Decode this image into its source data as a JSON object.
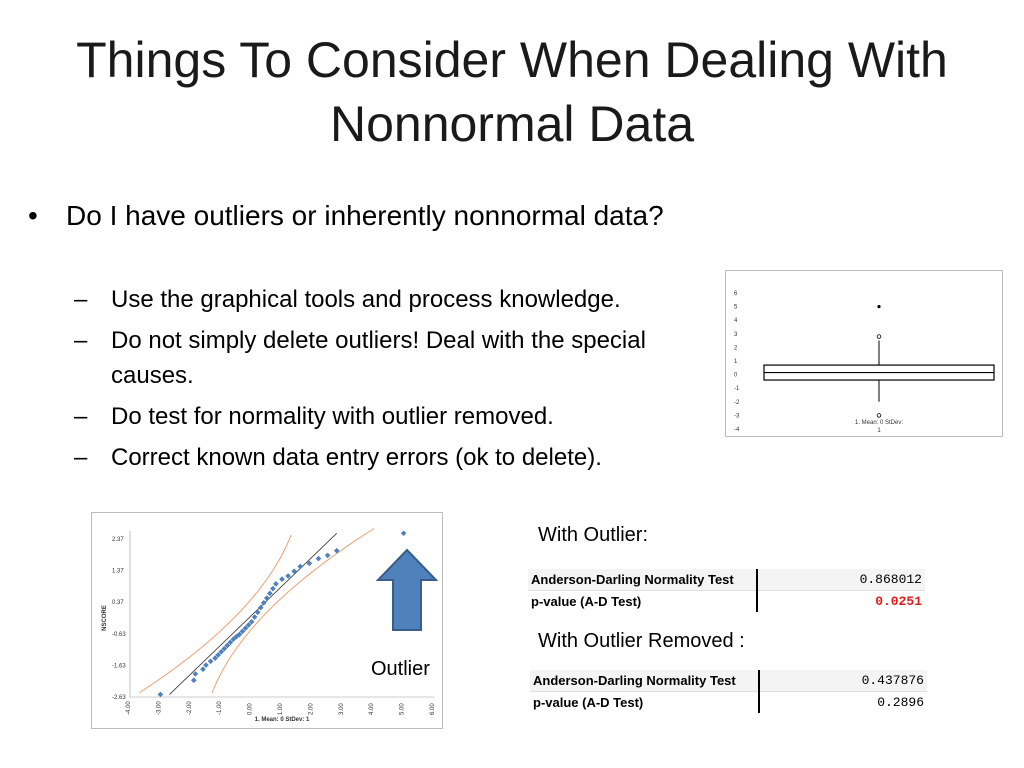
{
  "slide": {
    "title_line1": "Things To Consider When Dealing With",
    "title_line2": "Nonnormal Data",
    "bullet_symbol": "•",
    "dash_symbol": "–",
    "main_bullet": "Do I have outliers or inherently nonnormal data?",
    "sub_bullets": [
      "Use the graphical tools and process knowledge.",
      "Do not simply delete outliers! Deal with the special causes.",
      "Do test for normality with outlier removed.",
      "Correct known data entry errors (ok to delete)."
    ],
    "outlier_label": "Outlier",
    "with_outlier_label": "With Outlier:",
    "removed_label": "With Outlier Removed :"
  },
  "tables": {
    "with_outlier": {
      "row1_label": "Anderson-Darling Normality Test",
      "row1_value": "0.868012",
      "row2_label": "p-value (A-D Test)",
      "row2_value": "0.0251"
    },
    "outlier_removed": {
      "row1_label": "Anderson-Darling Normality Test",
      "row1_value": "0.437876",
      "row2_label": "p-value (A-D Test)",
      "row2_value": "0.2896"
    },
    "highlight_color": "#e31a1a"
  },
  "chart_data": [
    {
      "type": "box",
      "y_ticks": [
        "6",
        "5",
        "4",
        "3",
        "2",
        "1",
        "0",
        "-1",
        "-2",
        "-3",
        "-4"
      ],
      "ylim": [
        -4,
        6
      ],
      "box": {
        "q1": -0.4,
        "q3": 0.7,
        "median": 0.15,
        "whisker_low": -2,
        "whisker_high": 2.5
      },
      "outliers_circle": [
        2.8,
        -3
      ],
      "outlier_dot": 5,
      "xlabel": "1. Mean: 0 StDev:",
      "xlabel2": "1"
    },
    {
      "type": "scatter",
      "ylabel": "NSCORE",
      "xlabel": "1. Mean: 0 StDev: 1",
      "y_ticks": [
        "2.37",
        "1.37",
        "0.37",
        "-0.63",
        "-1.63",
        "-2.63"
      ],
      "x_ticks": [
        "-4.00",
        "-3.00",
        "-2.00",
        "-1.00",
        "0.00",
        "1.00",
        "2.00",
        "3.00",
        "4.00",
        "5.00",
        "6.00"
      ],
      "xlim": [
        -4,
        6
      ],
      "ylim": [
        -2.63,
        2.37
      ],
      "points": [
        [
          -3.0,
          -2.55
        ],
        [
          -1.9,
          -2.1
        ],
        [
          -1.85,
          -1.9
        ],
        [
          -1.6,
          -1.75
        ],
        [
          -1.5,
          -1.62
        ],
        [
          -1.35,
          -1.5
        ],
        [
          -1.2,
          -1.4
        ],
        [
          -1.1,
          -1.3
        ],
        [
          -1.0,
          -1.2
        ],
        [
          -0.9,
          -1.1
        ],
        [
          -0.8,
          -1.0
        ],
        [
          -0.7,
          -0.9
        ],
        [
          -0.6,
          -0.8
        ],
        [
          -0.5,
          -0.72
        ],
        [
          -0.4,
          -0.65
        ],
        [
          -0.3,
          -0.55
        ],
        [
          -0.2,
          -0.45
        ],
        [
          -0.1,
          -0.35
        ],
        [
          0.0,
          -0.25
        ],
        [
          0.1,
          -0.1
        ],
        [
          0.2,
          0.05
        ],
        [
          0.3,
          0.2
        ],
        [
          0.4,
          0.35
        ],
        [
          0.5,
          0.5
        ],
        [
          0.6,
          0.65
        ],
        [
          0.7,
          0.8
        ],
        [
          0.8,
          0.95
        ],
        [
          1.0,
          1.1
        ],
        [
          1.2,
          1.2
        ],
        [
          1.4,
          1.35
        ],
        [
          1.6,
          1.5
        ],
        [
          1.9,
          1.6
        ],
        [
          2.2,
          1.75
        ],
        [
          2.5,
          1.85
        ],
        [
          2.8,
          2.0
        ],
        [
          5.0,
          2.55
        ]
      ]
    }
  ]
}
